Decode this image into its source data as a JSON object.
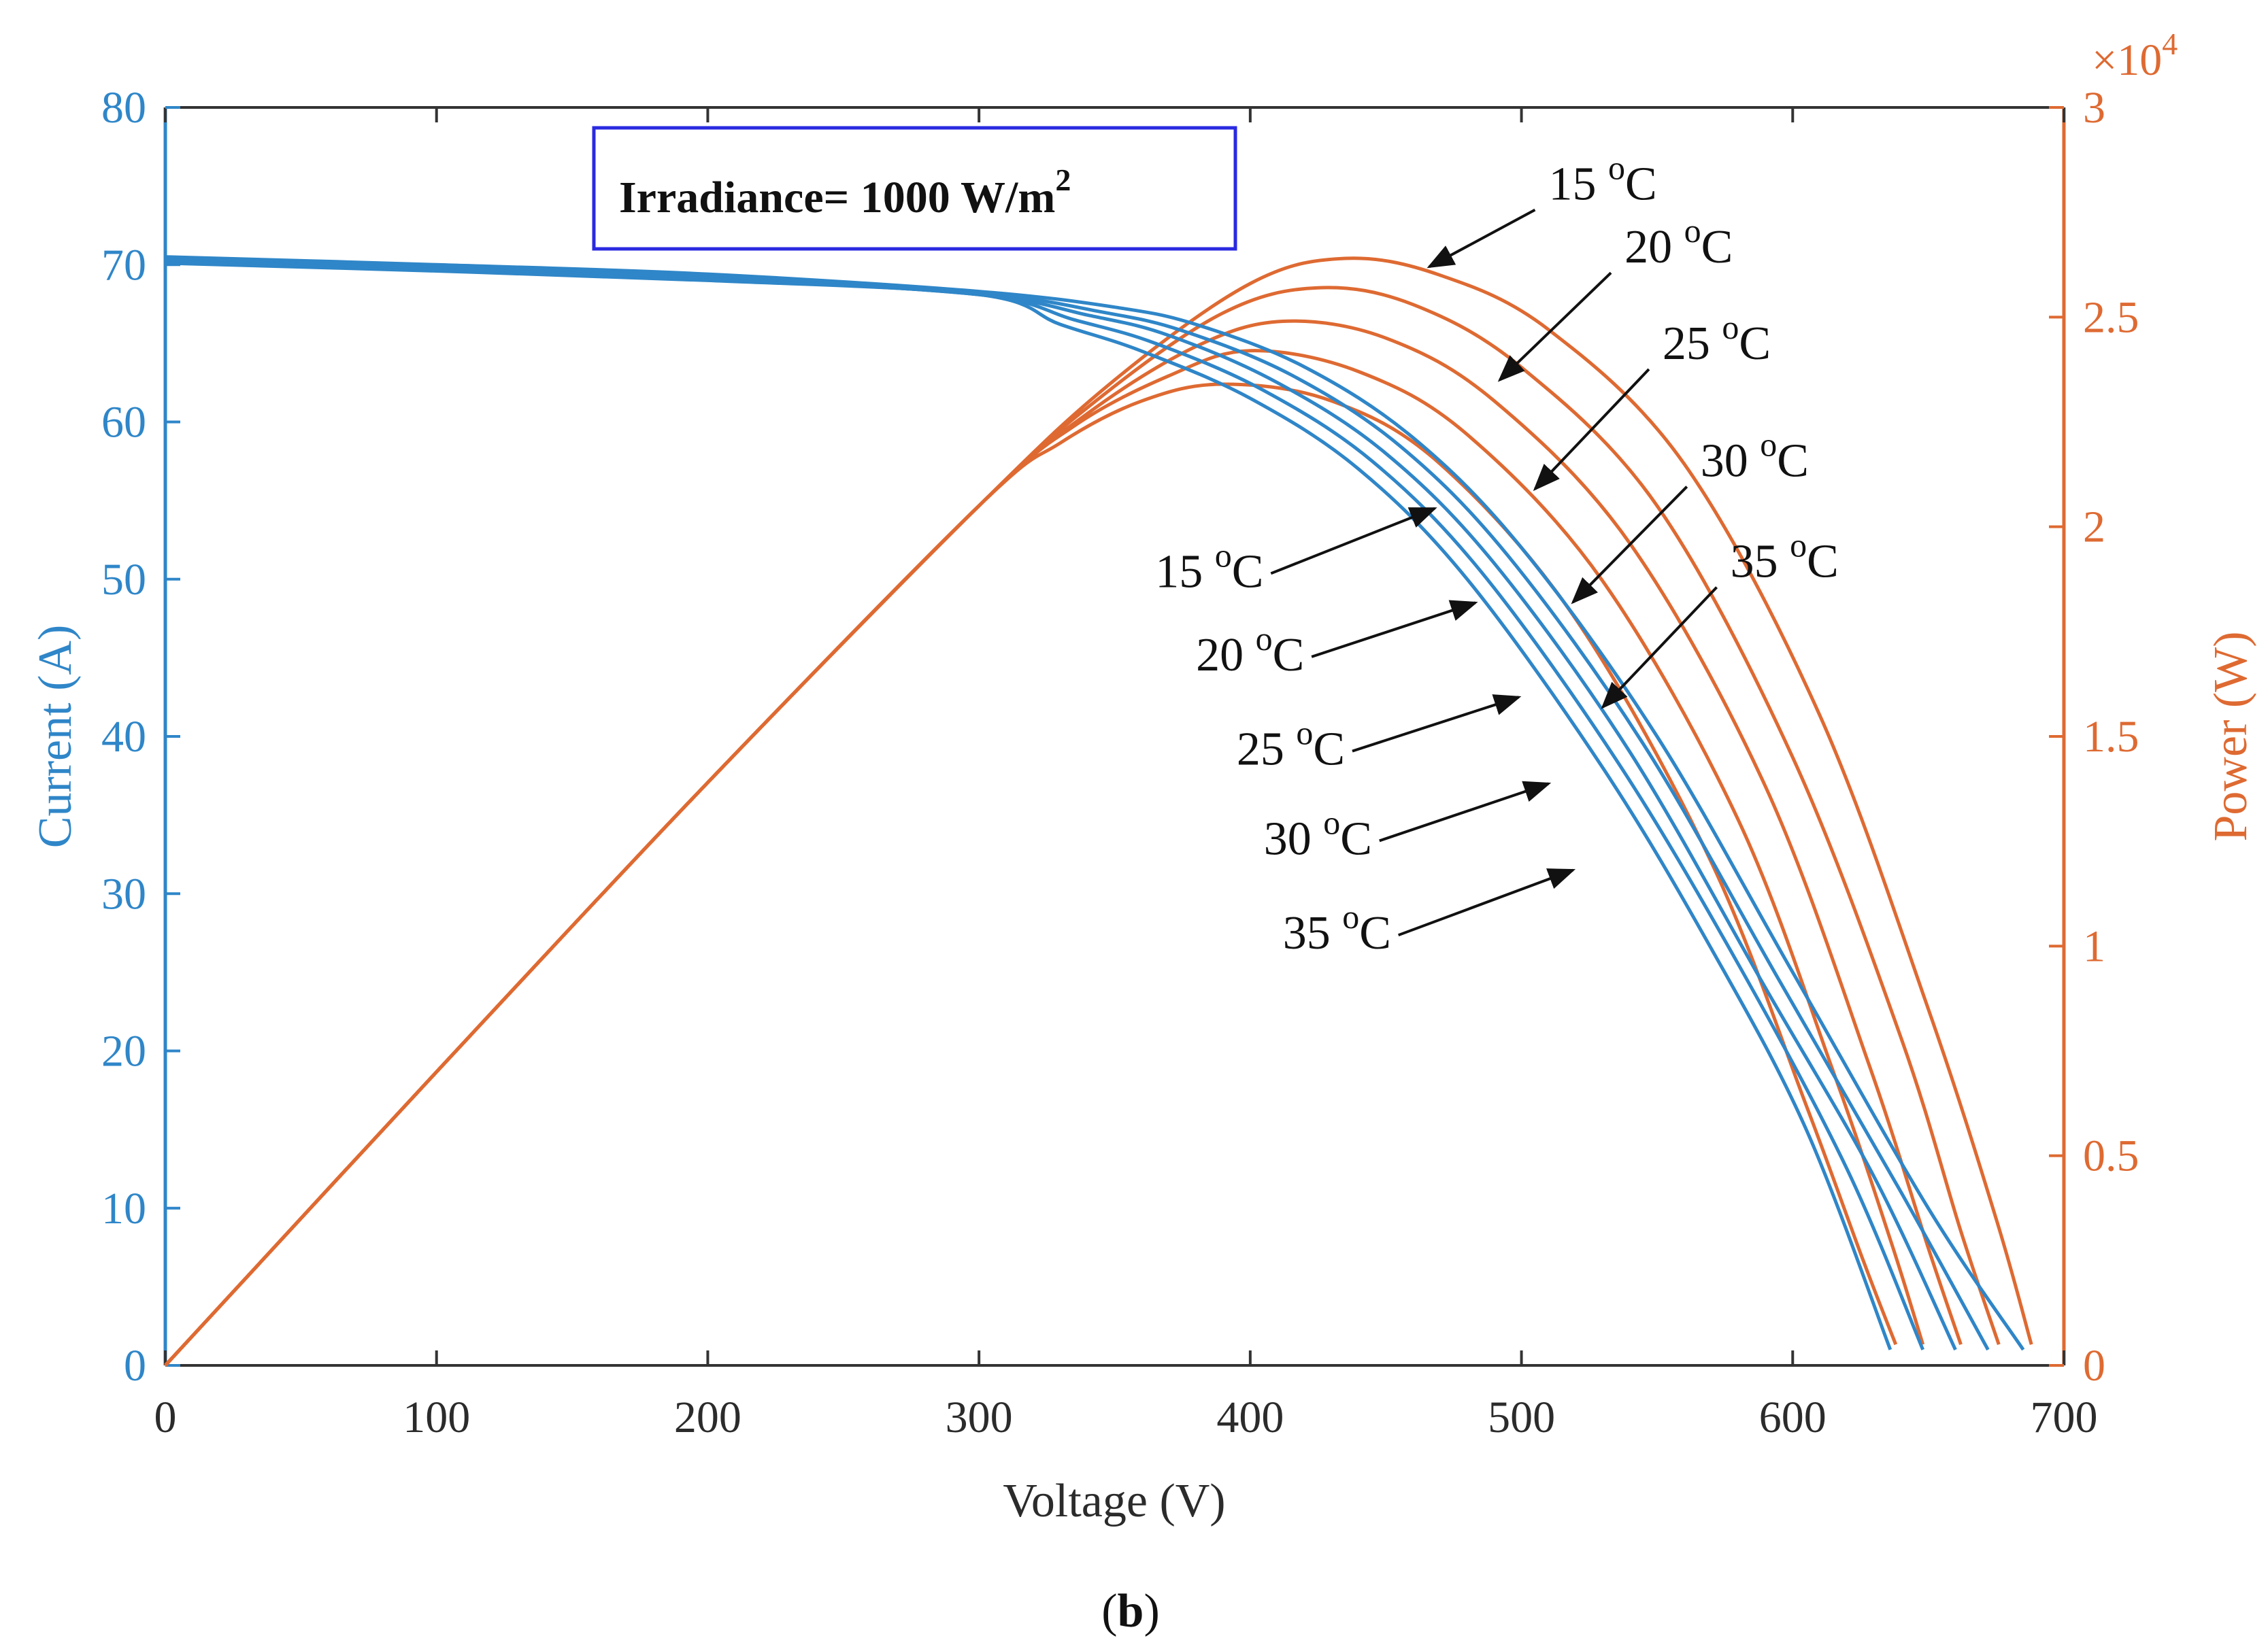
{
  "chart_data": {
    "type": "line",
    "title": "",
    "caption_open": "(",
    "caption_letter": "b",
    "caption_close": ")",
    "box_label": "Irradiance= 1000 W/m",
    "box_label_sup": "2",
    "xlabel": "Voltage (V)",
    "ylabel_left": "Current (A)",
    "ylabel_right": "Power (W)",
    "right_exponent_base": "×10",
    "right_exponent_power": "4",
    "xlim": [
      0,
      700
    ],
    "ylim_left": [
      0,
      80
    ],
    "ylim_right": [
      0,
      3
    ],
    "x_ticks": [
      "0",
      "100",
      "200",
      "300",
      "400",
      "500",
      "600",
      "700"
    ],
    "y_ticks_left": [
      "0",
      "10",
      "20",
      "30",
      "40",
      "50",
      "60",
      "70",
      "80"
    ],
    "y_ticks_right": [
      "0",
      "0.5",
      "1",
      "1.5",
      "2",
      "2.5",
      "3"
    ],
    "colors": {
      "current": "#2f86c8",
      "power": "#de6a32",
      "box": "#2a2ae0",
      "axis_left": "#2f86c8",
      "axis_right": "#de6a32",
      "axis_x": "#333333"
    },
    "current_series": [
      {
        "name": "15 oC",
        "points": [
          [
            0,
            70.5
          ],
          [
            100,
            70
          ],
          [
            200,
            69.4
          ],
          [
            300,
            68.3
          ],
          [
            350,
            67.3
          ],
          [
            380,
            66.2
          ],
          [
            420,
            63.5
          ],
          [
            460,
            59
          ],
          [
            500,
            52
          ],
          [
            550,
            40
          ],
          [
            600,
            25
          ],
          [
            650,
            10
          ],
          [
            685,
            1
          ]
        ]
      },
      {
        "name": "20 oC",
        "points": [
          [
            0,
            70.4
          ],
          [
            100,
            69.9
          ],
          [
            200,
            69.3
          ],
          [
            300,
            68.2
          ],
          [
            345,
            67
          ],
          [
            375,
            65.8
          ],
          [
            415,
            63
          ],
          [
            455,
            58.5
          ],
          [
            495,
            51.5
          ],
          [
            545,
            39.5
          ],
          [
            595,
            24.5
          ],
          [
            640,
            11
          ],
          [
            672,
            1
          ]
        ]
      },
      {
        "name": "25 oC",
        "points": [
          [
            0,
            70.3
          ],
          [
            100,
            69.8
          ],
          [
            200,
            69.2
          ],
          [
            300,
            68.1
          ],
          [
            340,
            66.8
          ],
          [
            370,
            65.5
          ],
          [
            410,
            62.5
          ],
          [
            450,
            58
          ],
          [
            490,
            51
          ],
          [
            540,
            39
          ],
          [
            590,
            24
          ],
          [
            630,
            12
          ],
          [
            660,
            1
          ]
        ]
      },
      {
        "name": "30 oC",
        "points": [
          [
            0,
            70.2
          ],
          [
            100,
            69.7
          ],
          [
            200,
            69.1
          ],
          [
            300,
            68.1
          ],
          [
            335,
            66.5
          ],
          [
            365,
            65
          ],
          [
            405,
            62
          ],
          [
            445,
            57.5
          ],
          [
            485,
            50.5
          ],
          [
            535,
            38.5
          ],
          [
            580,
            25.5
          ],
          [
            620,
            12.5
          ],
          [
            648,
            1
          ]
        ]
      },
      {
        "name": "35 oC",
        "points": [
          [
            0,
            70.1
          ],
          [
            100,
            69.6
          ],
          [
            200,
            69
          ],
          [
            300,
            68.1
          ],
          [
            330,
            66.2
          ],
          [
            360,
            64.5
          ],
          [
            400,
            61.5
          ],
          [
            440,
            57
          ],
          [
            480,
            50
          ],
          [
            530,
            38
          ],
          [
            570,
            26.5
          ],
          [
            605,
            15
          ],
          [
            636,
            1
          ]
        ]
      }
    ],
    "power_series": [
      {
        "name": "15 oC",
        "points": [
          [
            0,
            0
          ],
          [
            100,
            0.7
          ],
          [
            200,
            1.39
          ],
          [
            300,
            2.05
          ],
          [
            350,
            2.35
          ],
          [
            400,
            2.58
          ],
          [
            435,
            2.64
          ],
          [
            470,
            2.6
          ],
          [
            510,
            2.47
          ],
          [
            560,
            2.15
          ],
          [
            610,
            1.55
          ],
          [
            650,
            0.85
          ],
          [
            675,
            0.35
          ],
          [
            688,
            0.05
          ]
        ]
      },
      {
        "name": "20 oC",
        "points": [
          [
            0,
            0
          ],
          [
            100,
            0.7
          ],
          [
            200,
            1.39
          ],
          [
            300,
            2.05
          ],
          [
            345,
            2.31
          ],
          [
            390,
            2.51
          ],
          [
            425,
            2.57
          ],
          [
            460,
            2.53
          ],
          [
            500,
            2.38
          ],
          [
            550,
            2.05
          ],
          [
            600,
            1.45
          ],
          [
            640,
            0.78
          ],
          [
            662,
            0.32
          ],
          [
            676,
            0.05
          ]
        ]
      },
      {
        "name": "25 oC",
        "points": [
          [
            0,
            0
          ],
          [
            100,
            0.7
          ],
          [
            200,
            1.39
          ],
          [
            300,
            2.05
          ],
          [
            340,
            2.27
          ],
          [
            380,
            2.43
          ],
          [
            412,
            2.49
          ],
          [
            450,
            2.45
          ],
          [
            490,
            2.3
          ],
          [
            540,
            1.96
          ],
          [
            590,
            1.38
          ],
          [
            628,
            0.72
          ],
          [
            650,
            0.28
          ],
          [
            662,
            0.05
          ]
        ]
      },
      {
        "name": "30 oC",
        "points": [
          [
            0,
            0
          ],
          [
            100,
            0.7
          ],
          [
            200,
            1.39
          ],
          [
            300,
            2.05
          ],
          [
            335,
            2.24
          ],
          [
            370,
            2.36
          ],
          [
            400,
            2.42
          ],
          [
            440,
            2.37
          ],
          [
            480,
            2.22
          ],
          [
            530,
            1.87
          ],
          [
            580,
            1.3
          ],
          [
            615,
            0.7
          ],
          [
            636,
            0.3
          ],
          [
            648,
            0.05
          ]
        ]
      },
      {
        "name": "35 oC",
        "points": [
          [
            0,
            0
          ],
          [
            100,
            0.7
          ],
          [
            200,
            1.39
          ],
          [
            300,
            2.05
          ],
          [
            330,
            2.2
          ],
          [
            360,
            2.3
          ],
          [
            390,
            2.34
          ],
          [
            430,
            2.3
          ],
          [
            470,
            2.15
          ],
          [
            520,
            1.78
          ],
          [
            570,
            1.2
          ],
          [
            605,
            0.62
          ],
          [
            626,
            0.25
          ],
          [
            638,
            0.05
          ]
        ]
      }
    ],
    "power_annotations": [
      {
        "text": "15 ",
        "sup": "o",
        "unit": "C",
        "text_at": [
          510,
          2.78
        ],
        "arrow_to": [
          466,
          2.62
        ]
      },
      {
        "text": "20 ",
        "sup": "o",
        "unit": "C",
        "text_at": [
          538,
          2.63
        ],
        "arrow_to": [
          492,
          2.35
        ]
      },
      {
        "text": "25 ",
        "sup": "o",
        "unit": "C",
        "text_at": [
          552,
          2.4
        ],
        "arrow_to": [
          505,
          2.09
        ]
      },
      {
        "text": "30 ",
        "sup": "o",
        "unit": "C",
        "text_at": [
          566,
          2.12
        ],
        "arrow_to": [
          519,
          1.82
        ]
      },
      {
        "text": "35 ",
        "sup": "o",
        "unit": "C",
        "text_at": [
          577,
          1.88
        ],
        "arrow_to": [
          530,
          1.57
        ]
      }
    ],
    "current_annotations": [
      {
        "text": "15 ",
        "sup": "o",
        "unit": "C",
        "text_at": [
          365,
          49.5
        ],
        "arrow_to": [
          468,
          54.5
        ]
      },
      {
        "text": "20 ",
        "sup": "o",
        "unit": "C",
        "text_at": [
          380,
          44.2
        ],
        "arrow_to": [
          483,
          48.5
        ]
      },
      {
        "text": "25 ",
        "sup": "o",
        "unit": "C",
        "text_at": [
          395,
          38.2
        ],
        "arrow_to": [
          499,
          42.5
        ]
      },
      {
        "text": "30 ",
        "sup": "o",
        "unit": "C",
        "text_at": [
          405,
          32.5
        ],
        "arrow_to": [
          510,
          37
        ]
      },
      {
        "text": "35 ",
        "sup": "o",
        "unit": "C",
        "text_at": [
          412,
          26.5
        ],
        "arrow_to": [
          519,
          31.5
        ]
      }
    ]
  }
}
